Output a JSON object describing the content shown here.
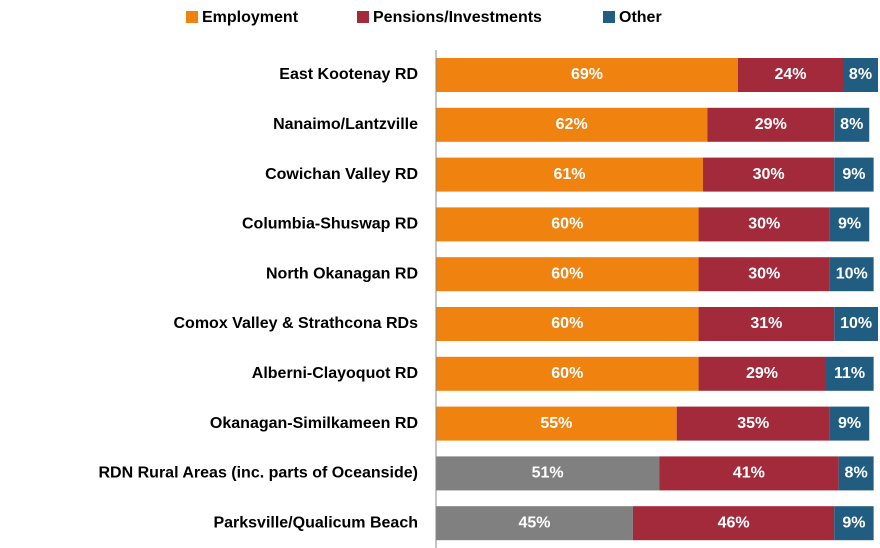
{
  "chart_data": {
    "type": "stacked_barh",
    "categories": [
      "East Kootenay RD",
      "Nanaimo/Lantzville",
      "Cowichan Valley RD",
      "Columbia-Shuswap RD",
      "North Okanagan RD",
      "Comox Valley & Strathcona RDs",
      "Alberni-Clayoquot RD",
      "Okanagan-Similkameen RD",
      "RDN Rural Areas (inc. parts of Oceanside)",
      "Parksville/Qualicum Beach"
    ],
    "series": [
      {
        "name": "Employment",
        "color": "#f0820f",
        "colors": [
          "#f0820f",
          "#f0820f",
          "#f0820f",
          "#f0820f",
          "#f0820f",
          "#f0820f",
          "#f0820f",
          "#f0820f",
          "#808080",
          "#808080"
        ],
        "values": [
          69,
          62,
          61,
          60,
          60,
          60,
          60,
          55,
          51,
          45
        ],
        "value_labels": [
          "69%",
          "62%",
          "61%",
          "60%",
          "60%",
          "60%",
          "60%",
          "55%",
          "51%",
          "45%"
        ]
      },
      {
        "name": "Pensions/Investments",
        "color": "#a22a3b",
        "values": [
          24,
          29,
          30,
          30,
          30,
          31,
          29,
          35,
          41,
          46
        ],
        "value_labels": [
          "24%",
          "29%",
          "30%",
          "30%",
          "30%",
          "31%",
          "29%",
          "35%",
          "41%",
          "46%"
        ]
      },
      {
        "name": "Other",
        "color": "#215d80",
        "values": [
          8,
          8,
          9,
          9,
          10,
          10,
          11,
          9,
          8,
          9
        ],
        "value_labels": [
          "8%",
          "8%",
          "9%",
          "9%",
          "10%",
          "10%",
          "11%",
          "9%",
          "8%",
          "9%"
        ]
      }
    ],
    "legend": "top"
  }
}
